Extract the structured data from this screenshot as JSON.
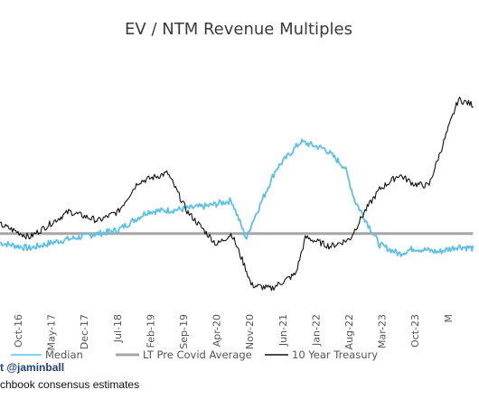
{
  "footer": {
    "handle": "t @jaminball",
    "source": "chbook consensus estimates"
  },
  "chart_data": {
    "type": "line",
    "title": "EV / NTM Revenue Multiples",
    "x_tick_labels": [
      "Oct-16",
      "May-17",
      "Dec-17",
      "Jul-18",
      "Feb-19",
      "Sep-19",
      "Apr-20",
      "Nov-20",
      "Jun-21",
      "Jan-22",
      "Aug-22",
      "Mar-23",
      "Oct-23",
      "M"
    ],
    "series": [
      {
        "name": "Median",
        "color": "#5bc0eb",
        "x": [
          "2016-01",
          "2016-07",
          "2017-01",
          "2017-07",
          "2018-01",
          "2018-07",
          "2019-01",
          "2019-07",
          "2019-12",
          "2020-03",
          "2020-04",
          "2020-06",
          "2020-09",
          "2021-02",
          "2021-07",
          "2021-11",
          "2022-01",
          "2022-06",
          "2022-10",
          "2023-01",
          "2023-06",
          "2023-10",
          "2024-01"
        ],
        "values": [
          0.45,
          0.42,
          0.46,
          0.49,
          0.52,
          0.62,
          0.63,
          0.65,
          0.68,
          0.47,
          0.55,
          0.67,
          0.85,
          1.0,
          0.96,
          0.86,
          0.68,
          0.44,
          0.39,
          0.42,
          0.4,
          0.43,
          0.42
        ]
      },
      {
        "name": "LT Pre Covid Average",
        "color": "#a6a6a6",
        "x": [
          "2016-01",
          "2024-01"
        ],
        "values": [
          0.5,
          0.5
        ]
      },
      {
        "name": "10 Year Treasury",
        "color": "#111111",
        "x": [
          "2016-01",
          "2016-07",
          "2016-11",
          "2017-03",
          "2017-09",
          "2018-01",
          "2018-05",
          "2018-11",
          "2019-03",
          "2019-09",
          "2019-12",
          "2020-03",
          "2020-04",
          "2020-08",
          "2021-01",
          "2021-03",
          "2021-08",
          "2021-12",
          "2022-03",
          "2022-06",
          "2022-10",
          "2023-01",
          "2023-04",
          "2023-10",
          "2024-01"
        ],
        "values": [
          0.55,
          0.48,
          0.55,
          0.62,
          0.57,
          0.62,
          0.78,
          0.83,
          0.62,
          0.44,
          0.5,
          0.3,
          0.22,
          0.2,
          0.28,
          0.48,
          0.43,
          0.47,
          0.62,
          0.74,
          0.82,
          0.77,
          0.76,
          1.23,
          1.2
        ]
      }
    ],
    "legend_placement": "bottom",
    "grid": false
  }
}
